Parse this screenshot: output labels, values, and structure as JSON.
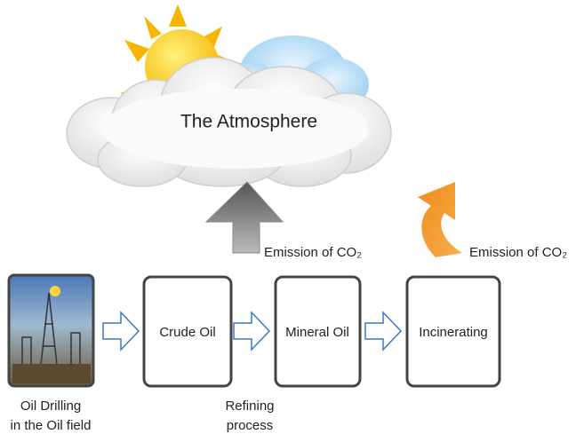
{
  "atmosphere": {
    "label": "The Atmosphere"
  },
  "emissions": [
    {
      "label": "Emission of CO₂"
    },
    {
      "label": "Emission of CO₂"
    }
  ],
  "steps": [
    {
      "caption": [
        "Oil Drilling",
        "in the Oil field"
      ]
    },
    {
      "label": "Crude Oil",
      "caption": [
        "Refining",
        "process"
      ]
    },
    {
      "label": "Mineral Oil"
    },
    {
      "label": "Incinerating"
    }
  ]
}
